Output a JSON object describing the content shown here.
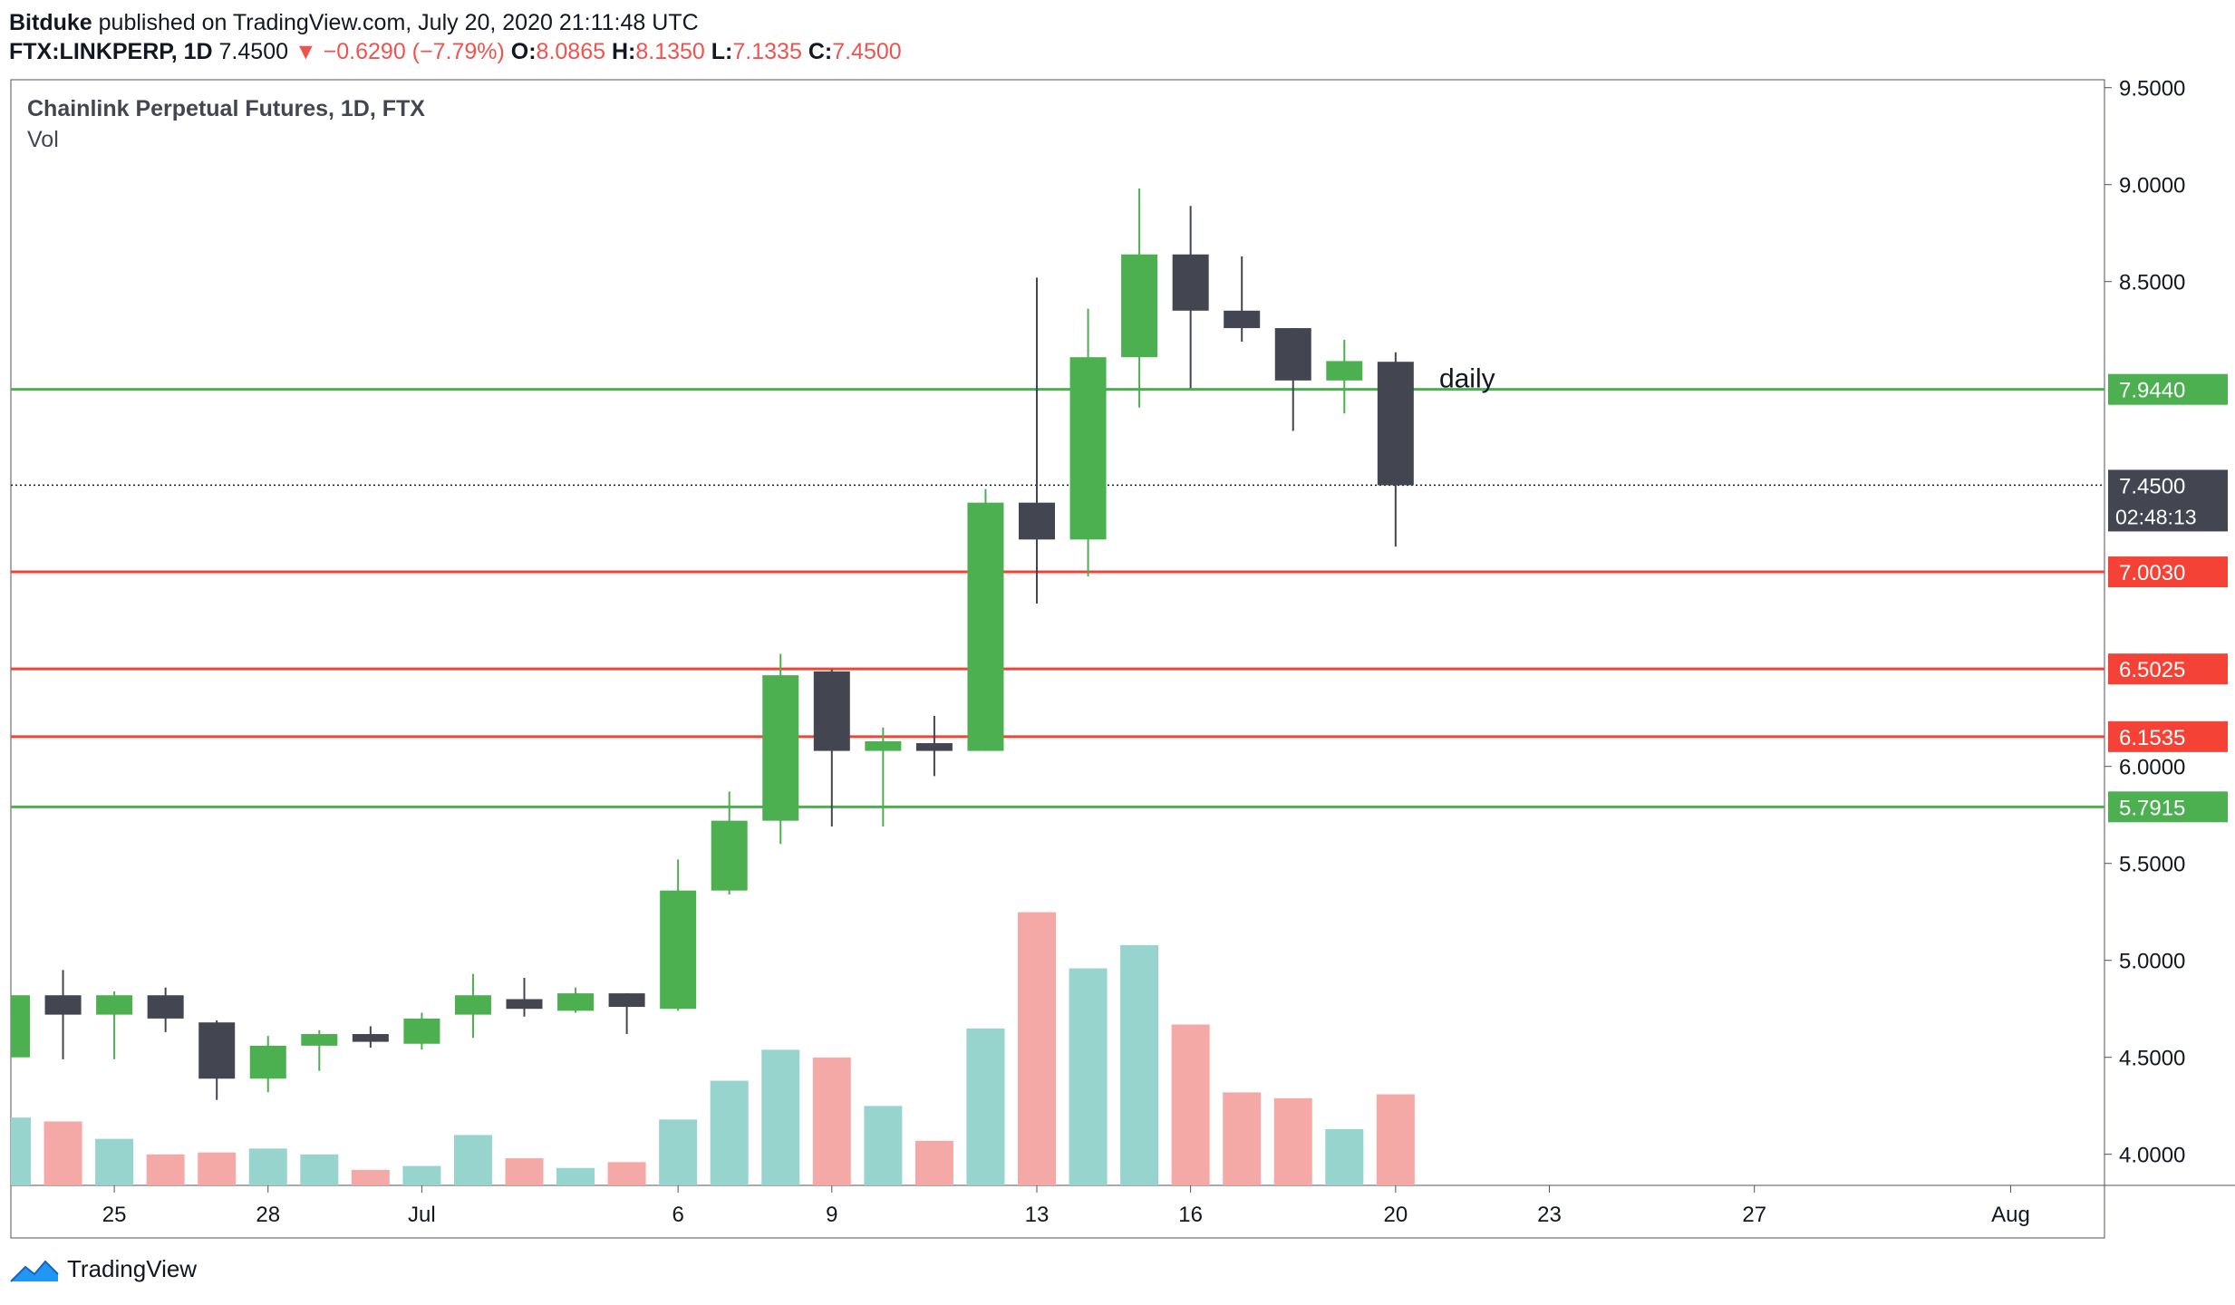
{
  "header": {
    "author": "Bitduke",
    "published": "published on TradingView.com, July 20, 2020 21:11:48 UTC",
    "symbol": "FTX:LINKPERP, 1D",
    "last": "7.4500",
    "change": "−0.6290 (−7.79%)",
    "o_label": "O:",
    "o": "8.0865",
    "h_label": "H:",
    "h": "8.1350",
    "l_label": "L:",
    "l": "7.1335",
    "c_label": "C:",
    "c": "7.4500"
  },
  "chart_data": {
    "type": "candlestick",
    "title": "Chainlink Perpetual Futures, 1D, FTX",
    "subtitle": "Vol",
    "y_ticks": [
      "9.5000",
      "9.0000",
      "8.5000",
      "6.0000",
      "5.5000",
      "5.0000",
      "4.5000",
      "4.0000"
    ],
    "x_ticks": [
      {
        "label": "25",
        "date": "2020-06-25"
      },
      {
        "label": "28",
        "date": "2020-06-28"
      },
      {
        "label": "Jul",
        "date": "2020-07-01"
      },
      {
        "label": "6",
        "date": "2020-07-06"
      },
      {
        "label": "9",
        "date": "2020-07-09"
      },
      {
        "label": "13",
        "date": "2020-07-13"
      },
      {
        "label": "16",
        "date": "2020-07-16"
      },
      {
        "label": "20",
        "date": "2020-07-20"
      },
      {
        "label": "23",
        "date": "2020-07-23"
      },
      {
        "label": "27",
        "date": "2020-07-27"
      },
      {
        "label": "Aug",
        "date": "2020-08-01"
      }
    ],
    "x_range": [
      "2020-06-23",
      "2020-08-04"
    ],
    "y_range": [
      3.85,
      9.55
    ],
    "candles": [
      {
        "date": "2020-06-23",
        "o": 4.5,
        "h": 4.82,
        "l": 4.5,
        "c": 4.82
      },
      {
        "date": "2020-06-24",
        "o": 4.82,
        "h": 4.95,
        "l": 4.49,
        "c": 4.72
      },
      {
        "date": "2020-06-25",
        "o": 4.72,
        "h": 4.84,
        "l": 4.49,
        "c": 4.82
      },
      {
        "date": "2020-06-26",
        "o": 4.82,
        "h": 4.86,
        "l": 4.63,
        "c": 4.7
      },
      {
        "date": "2020-06-27",
        "o": 4.68,
        "h": 4.69,
        "l": 4.28,
        "c": 4.39
      },
      {
        "date": "2020-06-28",
        "o": 4.39,
        "h": 4.61,
        "l": 4.32,
        "c": 4.56
      },
      {
        "date": "2020-06-29",
        "o": 4.56,
        "h": 4.64,
        "l": 4.43,
        "c": 4.62
      },
      {
        "date": "2020-06-30",
        "o": 4.62,
        "h": 4.66,
        "l": 4.55,
        "c": 4.58
      },
      {
        "date": "2020-07-01",
        "o": 4.57,
        "h": 4.73,
        "l": 4.54,
        "c": 4.7
      },
      {
        "date": "2020-07-02",
        "o": 4.72,
        "h": 4.93,
        "l": 4.6,
        "c": 4.82
      },
      {
        "date": "2020-07-03",
        "o": 4.8,
        "h": 4.91,
        "l": 4.71,
        "c": 4.75
      },
      {
        "date": "2020-07-04",
        "o": 4.74,
        "h": 4.86,
        "l": 4.73,
        "c": 4.83
      },
      {
        "date": "2020-07-05",
        "o": 4.83,
        "h": 4.83,
        "l": 4.62,
        "c": 4.76
      },
      {
        "date": "2020-07-06",
        "o": 4.75,
        "h": 5.52,
        "l": 4.74,
        "c": 5.36
      },
      {
        "date": "2020-07-07",
        "o": 5.36,
        "h": 5.87,
        "l": 5.34,
        "c": 5.72
      },
      {
        "date": "2020-07-08",
        "o": 5.72,
        "h": 6.58,
        "l": 5.6,
        "c": 6.47
      },
      {
        "date": "2020-07-09",
        "o": 6.49,
        "h": 6.5,
        "l": 5.69,
        "c": 6.08
      },
      {
        "date": "2020-07-10",
        "o": 6.08,
        "h": 6.2,
        "l": 5.69,
        "c": 6.13
      },
      {
        "date": "2020-07-11",
        "o": 6.12,
        "h": 6.26,
        "l": 5.95,
        "c": 6.08
      },
      {
        "date": "2020-07-12",
        "o": 6.08,
        "h": 7.43,
        "l": 6.08,
        "c": 7.36
      },
      {
        "date": "2020-07-13",
        "o": 7.36,
        "h": 8.52,
        "l": 6.84,
        "c": 7.17
      },
      {
        "date": "2020-07-14",
        "o": 7.17,
        "h": 8.36,
        "l": 6.98,
        "c": 8.11
      },
      {
        "date": "2020-07-15",
        "o": 8.11,
        "h": 8.98,
        "l": 7.85,
        "c": 8.64
      },
      {
        "date": "2020-07-16",
        "o": 8.64,
        "h": 8.89,
        "l": 7.95,
        "c": 8.35
      },
      {
        "date": "2020-07-17",
        "o": 8.35,
        "h": 8.63,
        "l": 8.19,
        "c": 8.26
      },
      {
        "date": "2020-07-18",
        "o": 8.26,
        "h": 8.26,
        "l": 7.73,
        "c": 7.99
      },
      {
        "date": "2020-07-19",
        "o": 7.99,
        "h": 8.2,
        "l": 7.82,
        "c": 8.09
      },
      {
        "date": "2020-07-20",
        "o": 8.0865,
        "h": 8.135,
        "l": 7.1335,
        "c": 7.45
      }
    ],
    "volume": [
      {
        "date": "2020-06-23",
        "v": 35
      },
      {
        "date": "2020-06-24",
        "v": 33
      },
      {
        "date": "2020-06-25",
        "v": 24
      },
      {
        "date": "2020-06-26",
        "v": 16
      },
      {
        "date": "2020-06-27",
        "v": 17
      },
      {
        "date": "2020-06-28",
        "v": 19
      },
      {
        "date": "2020-06-29",
        "v": 16
      },
      {
        "date": "2020-06-30",
        "v": 8
      },
      {
        "date": "2020-07-01",
        "v": 10
      },
      {
        "date": "2020-07-02",
        "v": 26
      },
      {
        "date": "2020-07-03",
        "v": 14
      },
      {
        "date": "2020-07-04",
        "v": 9
      },
      {
        "date": "2020-07-05",
        "v": 12
      },
      {
        "date": "2020-07-06",
        "v": 34
      },
      {
        "date": "2020-07-07",
        "v": 54
      },
      {
        "date": "2020-07-08",
        "v": 70
      },
      {
        "date": "2020-07-09",
        "v": 66
      },
      {
        "date": "2020-07-10",
        "v": 41
      },
      {
        "date": "2020-07-11",
        "v": 23
      },
      {
        "date": "2020-07-12",
        "v": 81
      },
      {
        "date": "2020-07-13",
        "v": 141
      },
      {
        "date": "2020-07-14",
        "v": 112
      },
      {
        "date": "2020-07-15",
        "v": 124
      },
      {
        "date": "2020-07-16",
        "v": 83
      },
      {
        "date": "2020-07-17",
        "v": 48
      },
      {
        "date": "2020-07-18",
        "v": 45
      },
      {
        "date": "2020-07-19",
        "v": 29
      },
      {
        "date": "2020-07-20",
        "v": 47
      }
    ],
    "levels": [
      {
        "price": 7.944,
        "label": "7.9440",
        "color": "#4caf50"
      },
      {
        "price": 7.003,
        "label": "7.0030",
        "color": "#f44336"
      },
      {
        "price": 6.5025,
        "label": "6.5025",
        "color": "#f44336"
      },
      {
        "price": 6.1535,
        "label": "6.1535",
        "color": "#f44336"
      },
      {
        "price": 5.7915,
        "label": "5.7915",
        "color": "#4caf50"
      }
    ],
    "last_price": {
      "price": 7.45,
      "label": "7.4500",
      "countdown": "02:48:13"
    },
    "annotation": {
      "text": "daily",
      "date": "2020-07-22",
      "price": 7.94
    },
    "colors": {
      "up": "#4caf50",
      "down": "#434651",
      "vol_up": "#97d4ce",
      "vol_down": "#f5a9a7",
      "axis": "#50535e",
      "text": "#131722"
    }
  },
  "footer": {
    "brand": "TradingView"
  }
}
